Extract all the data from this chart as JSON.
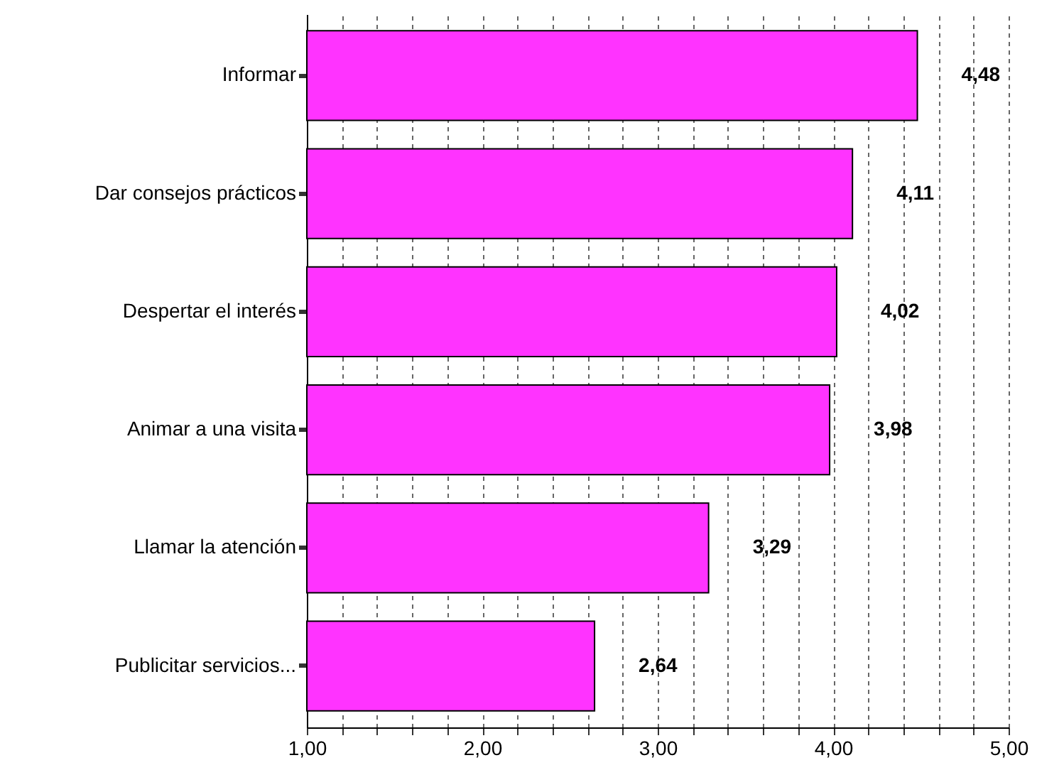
{
  "chart_data": {
    "type": "bar",
    "orientation": "horizontal",
    "categories": [
      "Informar",
      "Dar consejos prácticos",
      "Despertar el interés",
      "Animar a una visita",
      "Llamar la atención",
      "Publicitar servicios..."
    ],
    "values": [
      4.48,
      4.11,
      4.02,
      3.98,
      3.29,
      2.64
    ],
    "value_labels": [
      "4,48",
      "4,11",
      "4,02",
      "3,98",
      "3,29",
      "2,64"
    ],
    "color": "#ff33ff",
    "xlim": [
      1,
      5
    ],
    "xticks": [
      {
        "value": 1,
        "label": "1,00"
      },
      {
        "value": 1.2,
        "label": null
      },
      {
        "value": 1.4,
        "label": null
      },
      {
        "value": 1.6,
        "label": null
      },
      {
        "value": 1.8,
        "label": null
      },
      {
        "value": 2,
        "label": "2,00"
      },
      {
        "value": 2.2,
        "label": null
      },
      {
        "value": 2.4,
        "label": null
      },
      {
        "value": 2.6,
        "label": null
      },
      {
        "value": 2.8,
        "label": null
      },
      {
        "value": 3,
        "label": "3,00"
      },
      {
        "value": 3.2,
        "label": null
      },
      {
        "value": 3.4,
        "label": null
      },
      {
        "value": 3.6,
        "label": null
      },
      {
        "value": 3.8,
        "label": null
      },
      {
        "value": 4,
        "label": "4,00"
      },
      {
        "value": 4.2,
        "label": null
      },
      {
        "value": 4.4,
        "label": null
      },
      {
        "value": 4.6,
        "label": null
      },
      {
        "value": 4.8,
        "label": null
      },
      {
        "value": 5,
        "label": "5,00"
      }
    ],
    "grid": "x"
  }
}
